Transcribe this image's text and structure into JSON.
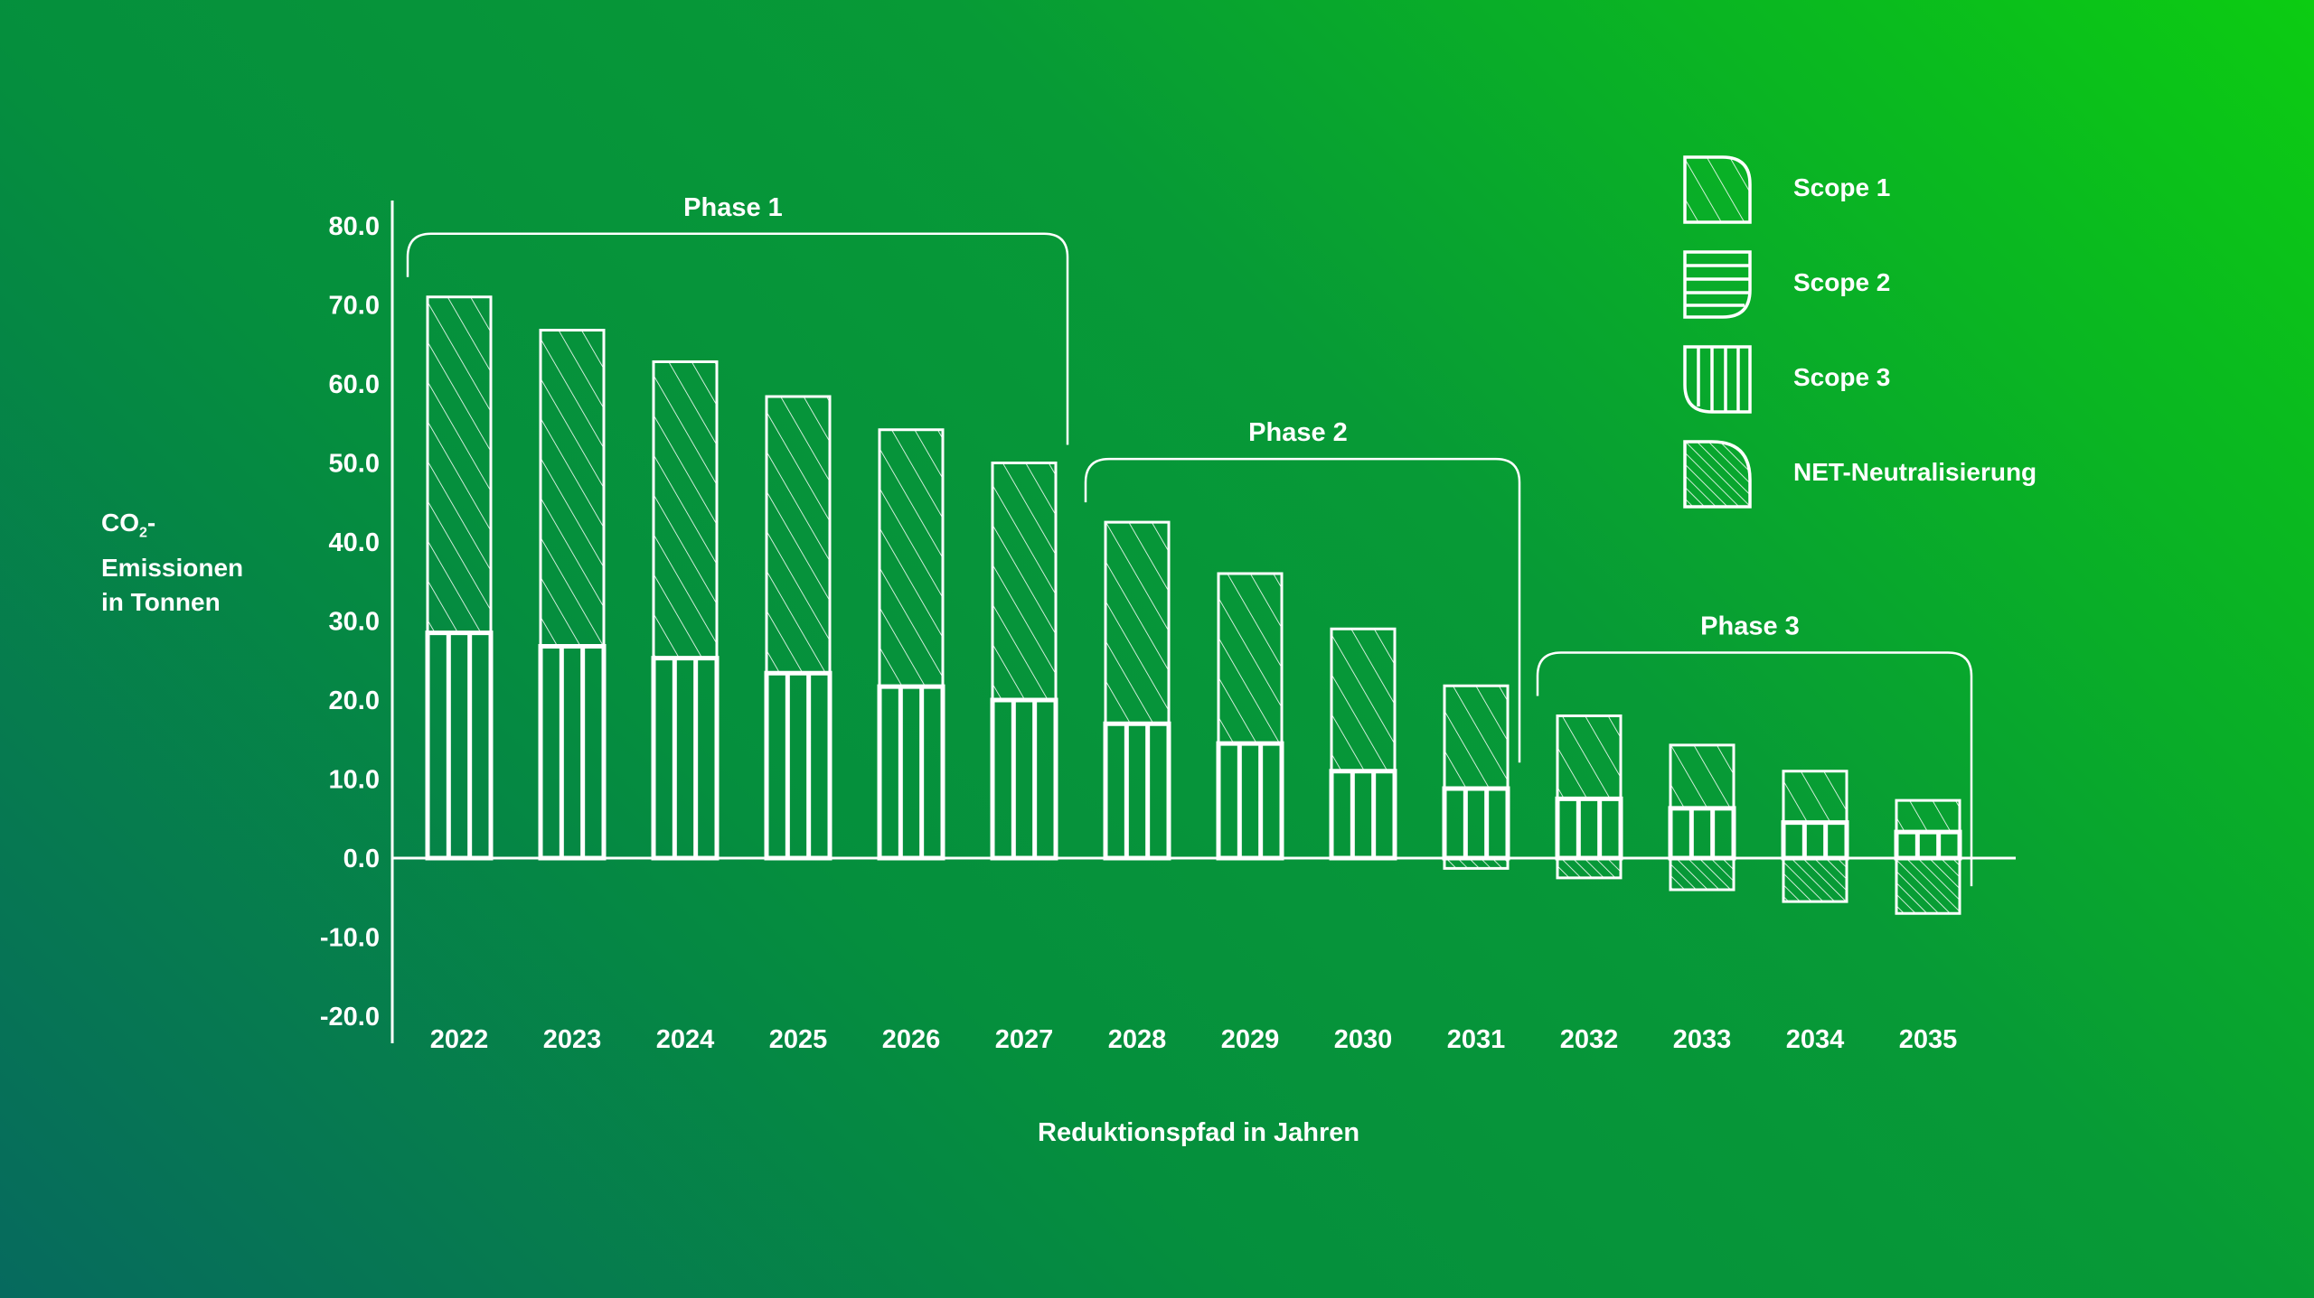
{
  "chart_data": {
    "type": "bar",
    "stacked": true,
    "categories": [
      "2022",
      "2023",
      "2024",
      "2025",
      "2026",
      "2027",
      "2028",
      "2029",
      "2030",
      "2031",
      "2032",
      "2033",
      "2034",
      "2035"
    ],
    "series": [
      {
        "name": "Scope 1",
        "values": [
          42.5,
          40.0,
          37.5,
          35.0,
          32.5,
          30.0,
          25.5,
          21.5,
          18.0,
          13.0,
          10.5,
          8.0,
          6.5,
          4.0
        ]
      },
      {
        "name": "Scope 2",
        "values": [
          0,
          0,
          0,
          0,
          0,
          0,
          0,
          0,
          0,
          0,
          0,
          0,
          0,
          0
        ]
      },
      {
        "name": "Scope 3",
        "values": [
          28.5,
          26.8,
          25.3,
          23.4,
          21.7,
          20.0,
          17.0,
          14.5,
          11.0,
          8.8,
          7.5,
          6.3,
          4.5,
          3.3
        ]
      },
      {
        "name": "NET-Neutralisierung",
        "values": [
          0,
          0,
          0,
          0,
          0,
          0,
          0,
          0,
          0,
          -1.3,
          -2.5,
          -4.0,
          -5.5,
          -7.0
        ]
      }
    ],
    "yticks": [
      "80.0",
      "70.0",
      "60.0",
      "50.0",
      "40.0",
      "30.0",
      "20.0",
      "10.0",
      "0.0",
      "-10.0",
      "-20.0"
    ],
    "ylim": [
      -20,
      80
    ],
    "ylabel_lines": [
      "CO",
      "-",
      "Emissionen",
      "in Tonnen"
    ],
    "ylabel_sub": "2",
    "xlabel": "Reduktionspfad in Jahren",
    "phases": [
      {
        "label": "Phase 1",
        "from": 0,
        "to": 5
      },
      {
        "label": "Phase 2",
        "from": 6,
        "to": 9
      },
      {
        "label": "Phase 3",
        "from": 10,
        "to": 13
      }
    ],
    "legend_position": "top-right",
    "grid": false
  },
  "legend": [
    {
      "label": "Scope 1",
      "icon": "diagonal-hatch-icon"
    },
    {
      "label": "Scope 2",
      "icon": "horizontal-stripes-icon"
    },
    {
      "label": "Scope 3",
      "icon": "vertical-stripes-icon"
    },
    {
      "label": "NET-Neutralisierung",
      "icon": "dense-hatch-icon"
    }
  ],
  "colors": {
    "foreground": "#ffffff",
    "background_start": "#0ccc12",
    "background_end": "#066a5e"
  }
}
